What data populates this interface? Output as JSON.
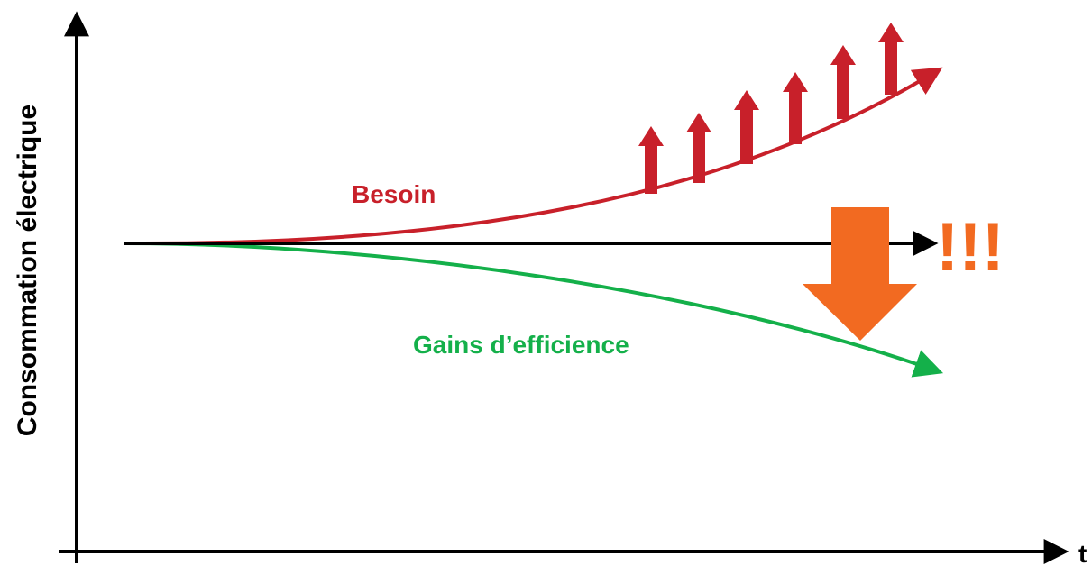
{
  "y_axis_label": "Consommation électrique",
  "x_axis_label": "t",
  "curves": [
    {
      "label": "Besoin"
    },
    {
      "label": "Gains d’efficience"
    }
  ],
  "alert": "!!!"
}
